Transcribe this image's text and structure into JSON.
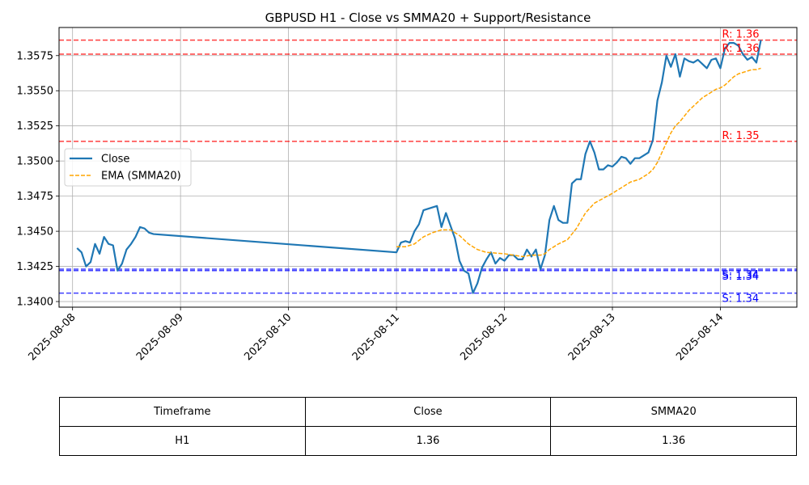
{
  "chart_data": {
    "type": "line",
    "title": "GBPUSD H1 - Close vs SMMA20 + Support/Resistance",
    "xlabel": "",
    "ylabel": "",
    "ylim": [
      1.3396,
      1.3595
    ],
    "xlim": [
      "2025-08-07T21:00",
      "2025-08-14T17:00"
    ],
    "grid": true,
    "legend_position": "center-left",
    "x_ticks": [
      "2025-08-08",
      "2025-08-09",
      "2025-08-10",
      "2025-08-11",
      "2025-08-12",
      "2025-08-13",
      "2025-08-14"
    ],
    "y_ticks": [
      "1.3400",
      "1.3425",
      "1.3450",
      "1.3475",
      "1.3500",
      "1.3525",
      "1.3550",
      "1.3575"
    ],
    "series": [
      {
        "name": "Close",
        "color": "#1f77b4",
        "style": "solid",
        "points": [
          [
            "2025-08-08T01:00",
            1.3438
          ],
          [
            "2025-08-08T02:00",
            1.3435
          ],
          [
            "2025-08-08T03:00",
            1.3425
          ],
          [
            "2025-08-08T04:00",
            1.3428
          ],
          [
            "2025-08-08T05:00",
            1.3441
          ],
          [
            "2025-08-08T06:00",
            1.3434
          ],
          [
            "2025-08-08T07:00",
            1.3446
          ],
          [
            "2025-08-08T08:00",
            1.3441
          ],
          [
            "2025-08-08T09:00",
            1.344
          ],
          [
            "2025-08-08T10:00",
            1.3422
          ],
          [
            "2025-08-08T11:00",
            1.3427
          ],
          [
            "2025-08-08T12:00",
            1.3437
          ],
          [
            "2025-08-08T13:00",
            1.3441
          ],
          [
            "2025-08-08T14:00",
            1.3446
          ],
          [
            "2025-08-08T15:00",
            1.3453
          ],
          [
            "2025-08-08T16:00",
            1.3452
          ],
          [
            "2025-08-08T17:00",
            1.3449
          ],
          [
            "2025-08-08T18:00",
            1.3448
          ],
          [
            "2025-08-11T00:00",
            1.3435
          ],
          [
            "2025-08-11T01:00",
            1.3442
          ],
          [
            "2025-08-11T02:00",
            1.3443
          ],
          [
            "2025-08-11T03:00",
            1.3442
          ],
          [
            "2025-08-11T04:00",
            1.345
          ],
          [
            "2025-08-11T05:00",
            1.3455
          ],
          [
            "2025-08-11T06:00",
            1.3465
          ],
          [
            "2025-08-11T07:00",
            1.3466
          ],
          [
            "2025-08-11T08:00",
            1.3467
          ],
          [
            "2025-08-11T09:00",
            1.3468
          ],
          [
            "2025-08-11T10:00",
            1.3453
          ],
          [
            "2025-08-11T11:00",
            1.3463
          ],
          [
            "2025-08-11T12:00",
            1.3454
          ],
          [
            "2025-08-11T13:00",
            1.3445
          ],
          [
            "2025-08-11T14:00",
            1.3429
          ],
          [
            "2025-08-11T15:00",
            1.3422
          ],
          [
            "2025-08-11T16:00",
            1.342
          ],
          [
            "2025-08-11T17:00",
            1.3406
          ],
          [
            "2025-08-11T18:00",
            1.3413
          ],
          [
            "2025-08-11T19:00",
            1.3424
          ],
          [
            "2025-08-11T20:00",
            1.343
          ],
          [
            "2025-08-11T21:00",
            1.3435
          ],
          [
            "2025-08-11T22:00",
            1.3427
          ],
          [
            "2025-08-11T23:00",
            1.3431
          ],
          [
            "2025-08-12T00:00",
            1.3429
          ],
          [
            "2025-08-12T01:00",
            1.3433
          ],
          [
            "2025-08-12T02:00",
            1.3433
          ],
          [
            "2025-08-12T03:00",
            1.343
          ],
          [
            "2025-08-12T04:00",
            1.343
          ],
          [
            "2025-08-12T05:00",
            1.3437
          ],
          [
            "2025-08-12T06:00",
            1.3432
          ],
          [
            "2025-08-12T07:00",
            1.3437
          ],
          [
            "2025-08-12T08:00",
            1.3423
          ],
          [
            "2025-08-12T09:00",
            1.3433
          ],
          [
            "2025-08-12T10:00",
            1.3458
          ],
          [
            "2025-08-12T11:00",
            1.3468
          ],
          [
            "2025-08-12T12:00",
            1.3458
          ],
          [
            "2025-08-12T13:00",
            1.3456
          ],
          [
            "2025-08-12T14:00",
            1.3456
          ],
          [
            "2025-08-12T15:00",
            1.3484
          ],
          [
            "2025-08-12T16:00",
            1.3487
          ],
          [
            "2025-08-12T17:00",
            1.3487
          ],
          [
            "2025-08-12T18:00",
            1.3505
          ],
          [
            "2025-08-12T19:00",
            1.3514
          ],
          [
            "2025-08-12T20:00",
            1.3506
          ],
          [
            "2025-08-12T21:00",
            1.3494
          ],
          [
            "2025-08-12T22:00",
            1.3494
          ],
          [
            "2025-08-12T23:00",
            1.3497
          ],
          [
            "2025-08-13T00:00",
            1.3496
          ],
          [
            "2025-08-13T01:00",
            1.3499
          ],
          [
            "2025-08-13T02:00",
            1.3503
          ],
          [
            "2025-08-13T03:00",
            1.3502
          ],
          [
            "2025-08-13T04:00",
            1.3498
          ],
          [
            "2025-08-13T05:00",
            1.3502
          ],
          [
            "2025-08-13T06:00",
            1.3502
          ],
          [
            "2025-08-13T07:00",
            1.3504
          ],
          [
            "2025-08-13T08:00",
            1.3506
          ],
          [
            "2025-08-13T09:00",
            1.3515
          ],
          [
            "2025-08-13T10:00",
            1.3543
          ],
          [
            "2025-08-13T11:00",
            1.3556
          ],
          [
            "2025-08-13T12:00",
            1.3575
          ],
          [
            "2025-08-13T13:00",
            1.3567
          ],
          [
            "2025-08-13T14:00",
            1.3576
          ],
          [
            "2025-08-13T15:00",
            1.356
          ],
          [
            "2025-08-13T16:00",
            1.3573
          ],
          [
            "2025-08-13T17:00",
            1.3571
          ],
          [
            "2025-08-13T18:00",
            1.357
          ],
          [
            "2025-08-13T19:00",
            1.3572
          ],
          [
            "2025-08-13T20:00",
            1.3569
          ],
          [
            "2025-08-13T21:00",
            1.3566
          ],
          [
            "2025-08-13T22:00",
            1.3572
          ],
          [
            "2025-08-13T23:00",
            1.3573
          ],
          [
            "2025-08-14T00:00",
            1.3566
          ],
          [
            "2025-08-14T01:00",
            1.358
          ],
          [
            "2025-08-14T02:00",
            1.3584
          ],
          [
            "2025-08-14T03:00",
            1.3584
          ],
          [
            "2025-08-14T04:00",
            1.3582
          ],
          [
            "2025-08-14T05:00",
            1.3576
          ],
          [
            "2025-08-14T06:00",
            1.3572
          ],
          [
            "2025-08-14T07:00",
            1.3574
          ],
          [
            "2025-08-14T08:00",
            1.357
          ],
          [
            "2025-08-14T09:00",
            1.3586
          ]
        ]
      },
      {
        "name": "EMA (SMMA20)",
        "color": "#ffa500",
        "style": "dashed",
        "points": [
          [
            "2025-08-11T00:00",
            1.3439
          ],
          [
            "2025-08-11T02:00",
            1.3439
          ],
          [
            "2025-08-11T04:00",
            1.3441
          ],
          [
            "2025-08-11T06:00",
            1.3446
          ],
          [
            "2025-08-11T08:00",
            1.3449
          ],
          [
            "2025-08-11T10:00",
            1.3451
          ],
          [
            "2025-08-11T12:00",
            1.3451
          ],
          [
            "2025-08-11T13:00",
            1.3449
          ],
          [
            "2025-08-11T14:00",
            1.3447
          ],
          [
            "2025-08-11T16:00",
            1.3441
          ],
          [
            "2025-08-11T18:00",
            1.3437
          ],
          [
            "2025-08-11T20:00",
            1.3435
          ],
          [
            "2025-08-12T00:00",
            1.3434
          ],
          [
            "2025-08-12T04:00",
            1.3432
          ],
          [
            "2025-08-12T06:00",
            1.3433
          ],
          [
            "2025-08-12T08:00",
            1.3433
          ],
          [
            "2025-08-12T09:00",
            1.3434
          ],
          [
            "2025-08-12T10:00",
            1.3437
          ],
          [
            "2025-08-12T12:00",
            1.3441
          ],
          [
            "2025-08-12T14:00",
            1.3444
          ],
          [
            "2025-08-12T16:00",
            1.3452
          ],
          [
            "2025-08-12T18:00",
            1.3463
          ],
          [
            "2025-08-12T20:00",
            1.347
          ],
          [
            "2025-08-13T00:00",
            1.3477
          ],
          [
            "2025-08-13T02:00",
            1.3481
          ],
          [
            "2025-08-13T04:00",
            1.3485
          ],
          [
            "2025-08-13T06:00",
            1.3487
          ],
          [
            "2025-08-13T08:00",
            1.3491
          ],
          [
            "2025-08-13T09:00",
            1.3494
          ],
          [
            "2025-08-13T10:00",
            1.3499
          ],
          [
            "2025-08-13T11:00",
            1.3506
          ],
          [
            "2025-08-13T12:00",
            1.3513
          ],
          [
            "2025-08-13T13:00",
            1.352
          ],
          [
            "2025-08-13T14:00",
            1.3525
          ],
          [
            "2025-08-13T15:00",
            1.3528
          ],
          [
            "2025-08-13T16:00",
            1.3532
          ],
          [
            "2025-08-13T17:00",
            1.3536
          ],
          [
            "2025-08-13T18:00",
            1.3539
          ],
          [
            "2025-08-13T19:00",
            1.3542
          ],
          [
            "2025-08-13T20:00",
            1.3545
          ],
          [
            "2025-08-13T21:00",
            1.3547
          ],
          [
            "2025-08-13T22:00",
            1.3549
          ],
          [
            "2025-08-13T23:00",
            1.3551
          ],
          [
            "2025-08-14T00:00",
            1.3552
          ],
          [
            "2025-08-14T01:00",
            1.3554
          ],
          [
            "2025-08-14T02:00",
            1.3557
          ],
          [
            "2025-08-14T03:00",
            1.356
          ],
          [
            "2025-08-14T04:00",
            1.3562
          ],
          [
            "2025-08-14T05:00",
            1.3563
          ],
          [
            "2025-08-14T06:00",
            1.3564
          ],
          [
            "2025-08-14T07:00",
            1.3565
          ],
          [
            "2025-08-14T08:00",
            1.3565
          ],
          [
            "2025-08-14T09:00",
            1.3566
          ]
        ]
      }
    ],
    "levels": [
      {
        "kind": "resistance",
        "value": 1.3586,
        "label": "R: 1.36",
        "color": "#ff0000"
      },
      {
        "kind": "resistance",
        "value": 1.3576,
        "label": "R: 1.36",
        "color": "#ff0000"
      },
      {
        "kind": "resistance",
        "value": 1.3514,
        "label": "R: 1.35",
        "color": "#ff0000"
      },
      {
        "kind": "support",
        "value": 1.3423,
        "label": "S: 1.34",
        "color": "#0000ff"
      },
      {
        "kind": "support",
        "value": 1.3422,
        "label": "S: 1.34",
        "color": "#0000ff"
      },
      {
        "kind": "support",
        "value": 1.3406,
        "label": "S: 1.34",
        "color": "#0000ff"
      }
    ]
  },
  "table": {
    "headers": [
      "Timeframe",
      "Close",
      "SMMA20"
    ],
    "row": [
      "H1",
      "1.36",
      "1.36"
    ]
  }
}
